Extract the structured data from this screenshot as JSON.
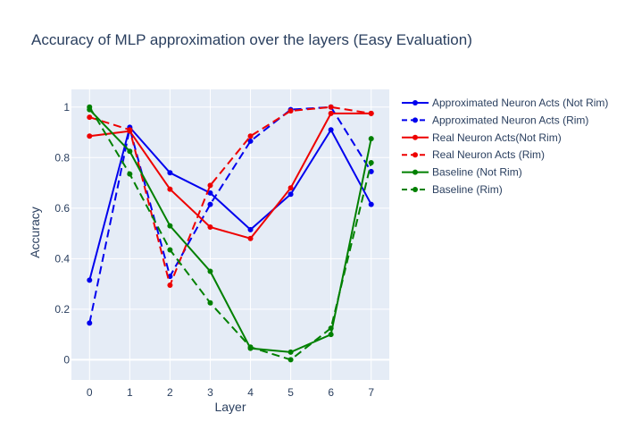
{
  "chart_data": {
    "type": "line",
    "title": "Accuracy of MLP approximation over the layers (Easy Evaluation)",
    "xlabel": "Layer",
    "ylabel": "Accuracy",
    "x": [
      0,
      1,
      2,
      3,
      4,
      5,
      6,
      7
    ],
    "xticks": [
      "0",
      "1",
      "2",
      "3",
      "4",
      "5",
      "6",
      "7"
    ],
    "yticks": [
      "0",
      "0.2",
      "0.4",
      "0.6",
      "0.8",
      "1"
    ],
    "xlim": [
      -0.45,
      7.45
    ],
    "ylim": [
      -0.08,
      1.07
    ],
    "grid": true,
    "legend_position": "right",
    "plot_background": "#e5ecf6",
    "series": [
      {
        "name": "Approximated Neuron Acts (Not Rim)",
        "color": "#0000ee",
        "dash": "solid",
        "values": [
          0.315,
          0.92,
          0.74,
          0.66,
          0.515,
          0.655,
          0.91,
          0.615
        ]
      },
      {
        "name": "Approximated Neuron Acts (Rim)",
        "color": "#0000ee",
        "dash": "dash",
        "values": [
          0.145,
          0.915,
          0.33,
          0.615,
          0.865,
          0.99,
          1.0,
          0.745
        ]
      },
      {
        "name": "Real Neuron Acts(Not Rim)",
        "color": "#ee0000",
        "dash": "solid",
        "values": [
          0.885,
          0.905,
          0.675,
          0.525,
          0.48,
          0.68,
          0.975,
          0.975
        ]
      },
      {
        "name": "Real Neuron Acts (Rim)",
        "color": "#ee0000",
        "dash": "dash",
        "values": [
          0.96,
          0.91,
          0.295,
          0.69,
          0.885,
          0.985,
          1.0,
          0.975
        ]
      },
      {
        "name": "Baseline (Not Rim)",
        "color": "#008000",
        "dash": "solid",
        "values": [
          0.99,
          0.825,
          0.53,
          0.35,
          0.045,
          0.03,
          0.1,
          0.875
        ]
      },
      {
        "name": "Baseline (Rim)",
        "color": "#008000",
        "dash": "dash",
        "values": [
          1.0,
          0.735,
          0.435,
          0.225,
          0.05,
          0.0,
          0.125,
          0.78
        ]
      }
    ]
  }
}
